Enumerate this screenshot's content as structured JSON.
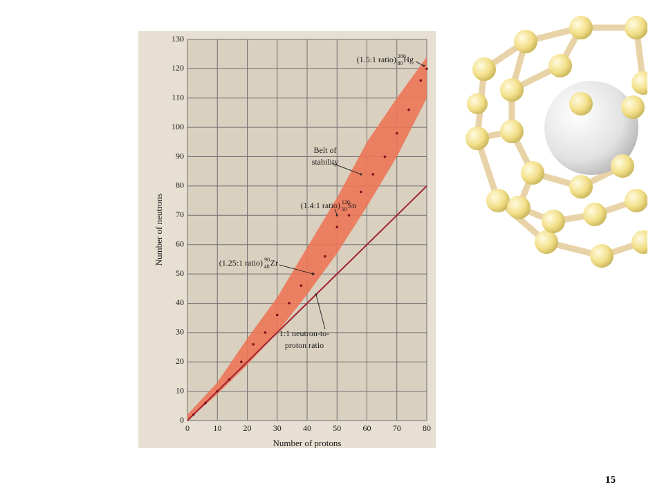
{
  "chart_data": {
    "type": "scatter",
    "xlabel": "Number of protons",
    "ylabel": "Number of neutrons",
    "xlim": [
      0,
      80
    ],
    "ylim": [
      0,
      130
    ],
    "xticks": [
      0,
      10,
      20,
      30,
      40,
      50,
      60,
      70,
      80
    ],
    "yticks": [
      0,
      10,
      20,
      30,
      40,
      50,
      60,
      70,
      80,
      90,
      100,
      110,
      120,
      130
    ],
    "grid": true,
    "series": [
      {
        "type": "area",
        "color": "#ec7658",
        "x": [
          0,
          10,
          20,
          30,
          40,
          50,
          60,
          70,
          80
        ],
        "lower": [
          0,
          9,
          19,
          30,
          43,
          57,
          73,
          90,
          110
        ],
        "values": [
          2,
          13,
          28,
          42,
          59,
          76,
          95,
          110,
          124
        ]
      },
      {
        "type": "line",
        "color": "#a3202f",
        "x": [
          0,
          80
        ],
        "values": [
          0,
          80
        ]
      },
      {
        "type": "scatter",
        "color": "#7a1422",
        "x": [
          2,
          6,
          10,
          14,
          18,
          22,
          26,
          30,
          34,
          38,
          42,
          46,
          50,
          54,
          58,
          62,
          66,
          70,
          74,
          78,
          80
        ],
        "values": [
          2,
          6,
          10,
          14,
          20,
          26,
          30,
          36,
          40,
          46,
          50,
          56,
          66,
          70,
          78,
          84,
          90,
          98,
          106,
          116,
          120
        ]
      }
    ],
    "annotations": [
      {
        "lines": [
          "(1.5:1 ratio)"
        ],
        "mass": "200",
        "number": "80",
        "symbol": "Hg",
        "x": 79,
        "y": 121
      },
      {
        "lines": [
          "Belt of",
          "stability"
        ],
        "x": 58,
        "y": 84
      },
      {
        "lines": [
          "(1.4:1 ratio)"
        ],
        "mass": "120",
        "number": "50",
        "symbol": "Sn",
        "x": 50,
        "y": 70
      },
      {
        "lines": [
          "(1.25:1 ratio)"
        ],
        "mass": "90",
        "number": "40",
        "symbol": "Zr",
        "x": 42,
        "y": 50
      },
      {
        "lines": [
          "1:1 neutron-to-",
          "proton ratio"
        ],
        "x": 43,
        "y": 43
      }
    ]
  },
  "slide": {
    "page_number": "15"
  }
}
